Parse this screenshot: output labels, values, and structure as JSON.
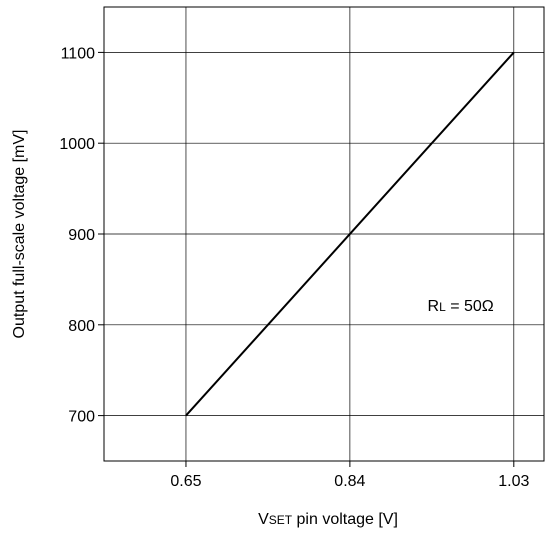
{
  "chart_data": {
    "type": "line",
    "x": [
      0.65,
      1.03
    ],
    "series": [
      {
        "values": [
          700,
          1100
        ],
        "color": "#000000"
      }
    ],
    "xticks": [
      0.65,
      0.84,
      1.03
    ],
    "xtick_labels": [
      "0.65",
      "0.84",
      "1.03"
    ],
    "yticks": [
      700,
      800,
      900,
      1000,
      1100
    ],
    "ytick_labels": [
      "700",
      "800",
      "900",
      "1000",
      "1100"
    ],
    "xlim": [
      0.555,
      1.065
    ],
    "ylim": [
      650,
      1150
    ],
    "xlabel": {
      "main_prefix": "V",
      "subscript": "SET",
      "suffix": " pin voltage [V]"
    },
    "ylabel": "Output full-scale voltage [mV]",
    "annotation": {
      "main": "R",
      "subscript": "L",
      "suffix": " = 50Ω",
      "x": 0.93,
      "y": 815
    },
    "grid": true
  }
}
